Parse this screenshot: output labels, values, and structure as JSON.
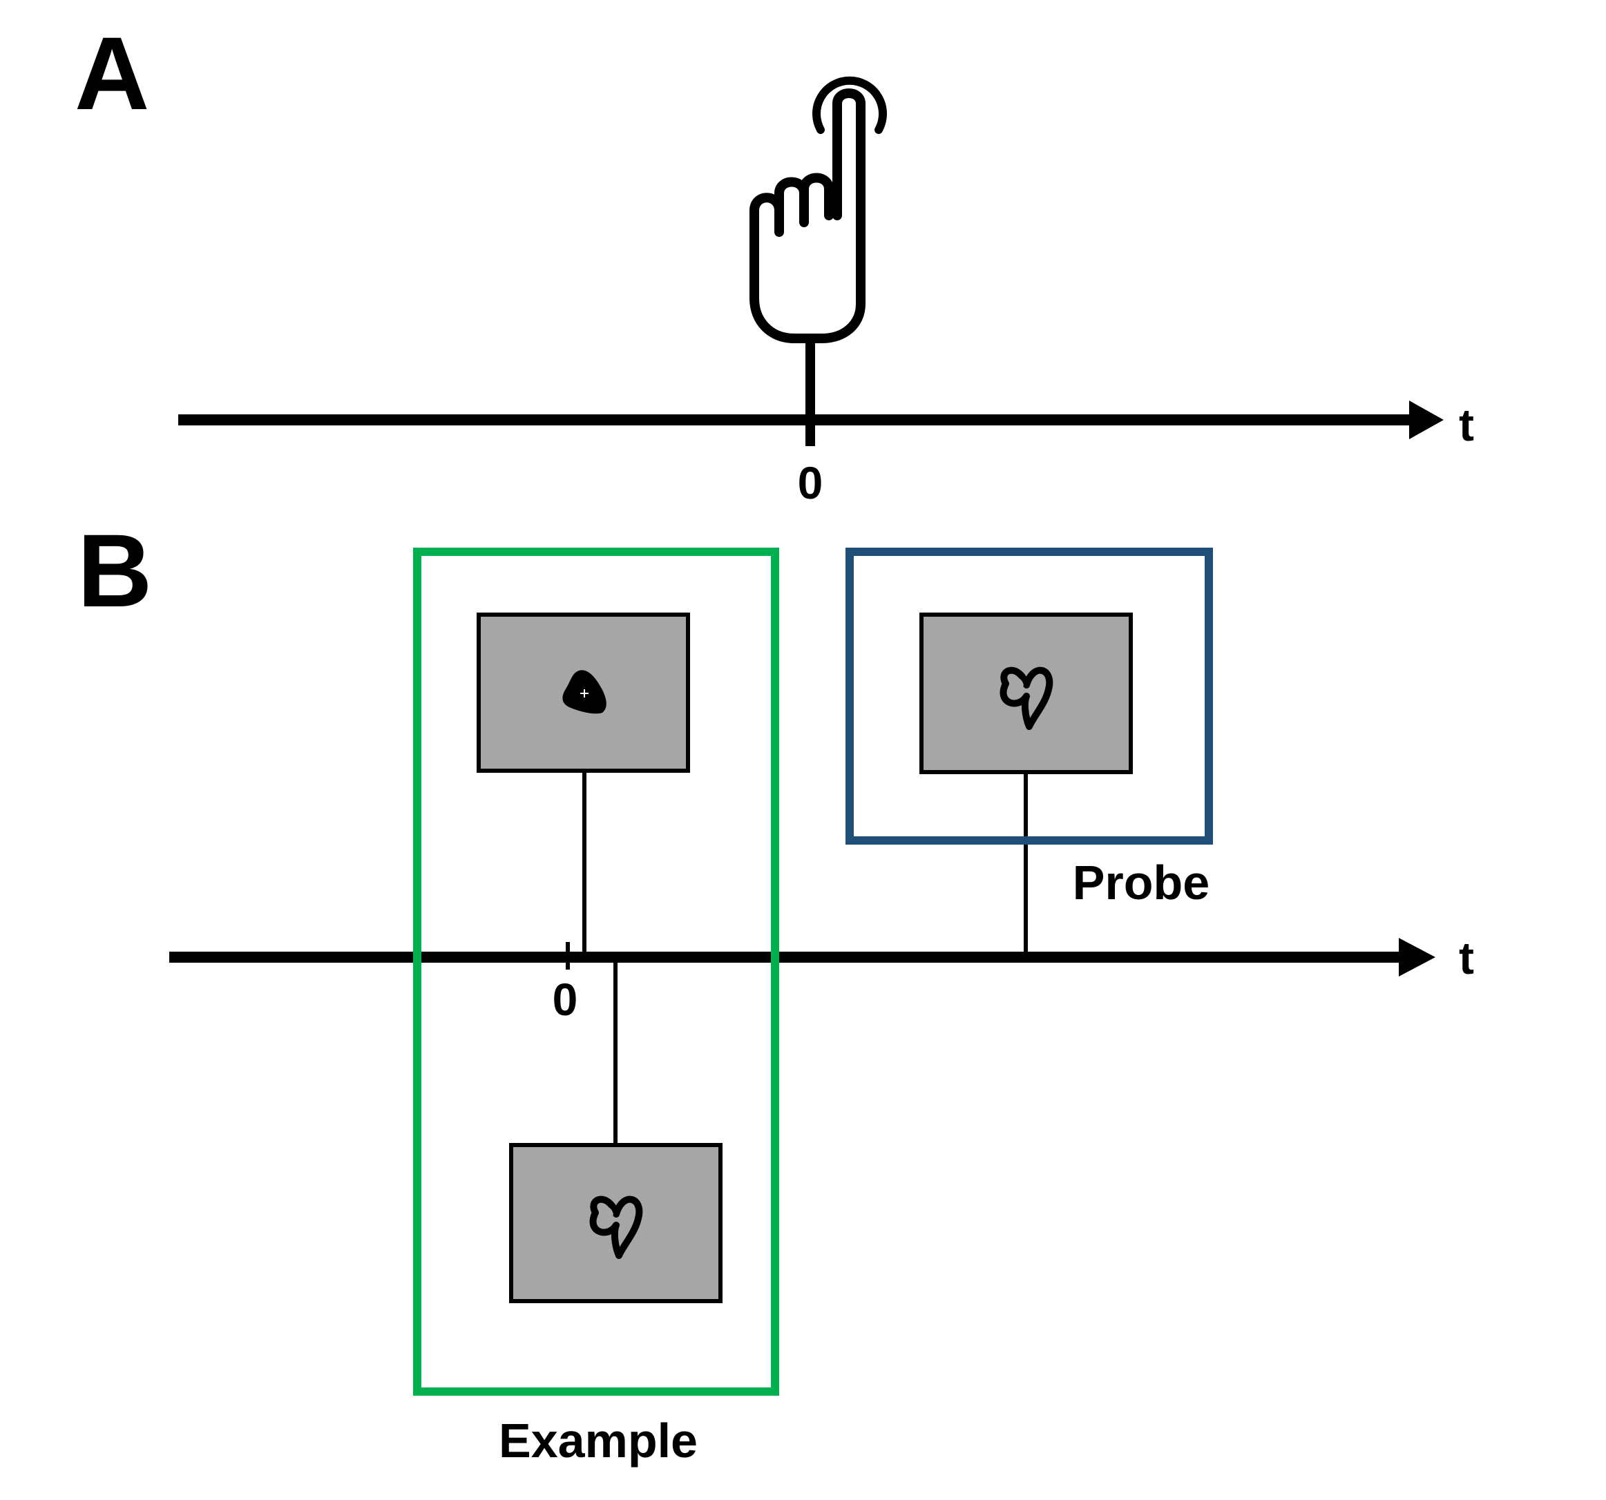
{
  "panels": {
    "a": {
      "label": "A",
      "axis_label": "t",
      "tick_label": "0",
      "icon": "pointing-hand-tap-icon"
    },
    "b": {
      "label": "B",
      "axis_label": "t",
      "tick_label": "0",
      "example_label": "Example",
      "probe_label": "Probe",
      "example_color": "#00b050",
      "probe_color": "#1f4e79",
      "screen_color": "#a6a6a6",
      "stimuli": {
        "example_first": "solid-blob-shape-icon",
        "example_second": "figure-eight-shape-icon",
        "probe": "figure-eight-shape-icon"
      }
    }
  }
}
